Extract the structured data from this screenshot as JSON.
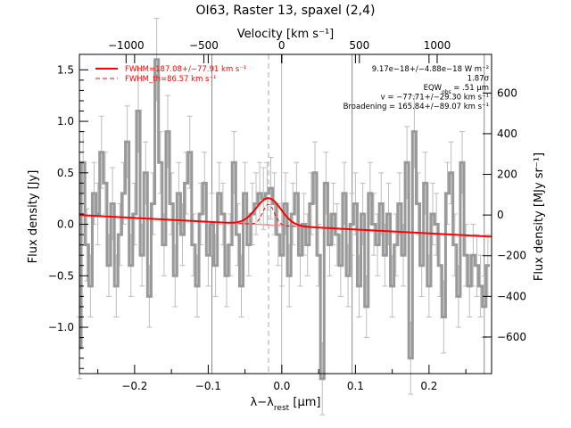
{
  "title": "OI63, Raster 13, spaxel (2,4)",
  "chart_data": {
    "type": "line",
    "title": "OI63, Raster 13, spaxel (2,4)",
    "xlabel": "λ−λ_rest [µm]",
    "ylabel": "Flux density [Jy]",
    "x2label": "Velocity [km s⁻¹]",
    "y2label": "Flux density [MJy sr⁻¹]",
    "xlim": [
      -0.275,
      0.285
    ],
    "ylim": [
      -1.45,
      1.65
    ],
    "x2lim": [
      -1300,
      1350
    ],
    "y2lim": [
      -780,
      790
    ],
    "xticks": [
      -0.2,
      -0.1,
      0.0,
      0.1,
      0.2
    ],
    "xtick_labels": [
      "−0.2",
      "−0.1",
      "0.0",
      "0.1",
      "0.2"
    ],
    "yticks": [
      -1.0,
      -0.5,
      0.0,
      0.5,
      1.0,
      1.5
    ],
    "ytick_labels": [
      "−1.0",
      "−0.5",
      "0.0",
      "0.5",
      "1.0",
      "1.5"
    ],
    "x2ticks": [
      -1000,
      -500,
      0,
      500,
      1000
    ],
    "x2tick_labels": [
      "−1000",
      "−500",
      "0",
      "500",
      "1000"
    ],
    "y2ticks": [
      -600,
      -400,
      -200,
      0,
      200,
      400,
      600
    ],
    "y2tick_labels": [
      "−600",
      "−400",
      "−200",
      "0",
      "200",
      "400",
      "600"
    ],
    "vertical_lines": [
      -0.095,
      0.0955,
      0.275
    ],
    "line_center": -0.018,
    "grid": false,
    "legend_position": "top-left",
    "legend": [
      {
        "label": "FWHM=187.08+/−77.91 km s⁻¹",
        "color": "#ff0000",
        "style": "solid"
      },
      {
        "label": "FWHM_th=86.57 km s⁻¹",
        "color": "#ff0000",
        "style": "dashed"
      }
    ],
    "annotations": [
      "9.17e−18+/−4.88e−18 W m⁻²",
      "1.87σ",
      "EQW_obs = .51 µm",
      "v = −77.71+/−29.30 km s⁻¹",
      "Broadening = 165.84+/−89.07 km s⁻¹"
    ],
    "series": [
      {
        "name": "observed spectrum",
        "color": "#999999",
        "style": "step",
        "x": [
          -0.275,
          -0.27,
          -0.265,
          -0.26,
          -0.255,
          -0.25,
          -0.245,
          -0.24,
          -0.235,
          -0.23,
          -0.225,
          -0.22,
          -0.215,
          -0.21,
          -0.205,
          -0.2,
          -0.195,
          -0.19,
          -0.185,
          -0.18,
          -0.175,
          -0.17,
          -0.165,
          -0.16,
          -0.155,
          -0.15,
          -0.145,
          -0.14,
          -0.135,
          -0.13,
          -0.125,
          -0.12,
          -0.115,
          -0.11,
          -0.105,
          -0.1,
          -0.095,
          -0.09,
          -0.085,
          -0.08,
          -0.075,
          -0.07,
          -0.065,
          -0.06,
          -0.055,
          -0.05,
          -0.045,
          -0.04,
          -0.035,
          -0.03,
          -0.025,
          -0.02,
          -0.015,
          -0.01,
          -0.005,
          0.0,
          0.005,
          0.01,
          0.015,
          0.02,
          0.025,
          0.03,
          0.035,
          0.04,
          0.045,
          0.05,
          0.055,
          0.06,
          0.065,
          0.07,
          0.075,
          0.08,
          0.085,
          0.09,
          0.095,
          0.1,
          0.105,
          0.11,
          0.115,
          0.12,
          0.125,
          0.13,
          0.135,
          0.14,
          0.145,
          0.15,
          0.155,
          0.16,
          0.165,
          0.17,
          0.175,
          0.18,
          0.185,
          0.19,
          0.195,
          0.2,
          0.205,
          0.21,
          0.215,
          0.22,
          0.225,
          0.23,
          0.235,
          0.24,
          0.245,
          0.25,
          0.255,
          0.26,
          0.265,
          0.27,
          0.275,
          0.28
        ],
        "y": [
          -1.2,
          0.6,
          -0.2,
          -0.6,
          0.3,
          0.1,
          0.7,
          0.4,
          -0.4,
          0.2,
          -0.6,
          -0.1,
          0.3,
          0.8,
          -0.4,
          0.1,
          1.1,
          -0.3,
          0.5,
          -0.7,
          0.2,
          1.6,
          0.6,
          -0.2,
          0.9,
          0.2,
          -0.5,
          0.3,
          -0.1,
          0.4,
          0.7,
          -0.2,
          -0.6,
          0.1,
          0.4,
          -0.3,
          0.0,
          -0.4,
          0.3,
          0.1,
          -0.5,
          -0.2,
          0.6,
          -0.1,
          -0.6,
          0.3,
          -0.2,
          0.1,
          0.2,
          0.3,
          0.25,
          0.3,
          0.35,
          0.2,
          -0.1,
          -0.3,
          0.2,
          -0.5,
          0.1,
          0.3,
          -0.3,
          0.0,
          -0.2,
          0.2,
          0.5,
          -0.3,
          -1.5,
          0.4,
          -0.2,
          0.1,
          -0.1,
          -0.4,
          0.3,
          -0.5,
          0.0,
          0.2,
          -0.6,
          0.1,
          -0.8,
          0.3,
          0.0,
          -0.2,
          0.2,
          -0.3,
          0.1,
          -0.6,
          -0.2,
          0.2,
          -0.3,
          0.6,
          -1.3,
          0.9,
          0.2,
          -0.4,
          0.4,
          -0.6,
          0.1,
          0.0,
          -0.4,
          -0.9,
          0.3,
          0.5,
          -0.2,
          -0.7,
          0.6,
          -0.3,
          -0.6,
          -0.3,
          -0.4,
          -0.6,
          -0.8,
          -0.4
        ],
        "err": [
          0.3,
          0.3,
          0.35,
          0.3,
          0.3,
          0.3,
          0.35,
          0.3,
          0.3,
          0.35,
          0.3,
          0.3,
          0.3,
          0.35,
          0.3,
          0.3,
          0.4,
          0.3,
          0.3,
          0.3,
          0.3,
          0.4,
          0.3,
          0.3,
          0.35,
          0.3,
          0.3,
          0.3,
          0.3,
          0.3,
          0.35,
          0.3,
          0.3,
          0.3,
          0.3,
          0.3,
          0.3,
          0.3,
          0.3,
          0.3,
          0.3,
          0.3,
          0.3,
          0.3,
          0.3,
          0.3,
          0.3,
          0.3,
          0.3,
          0.3,
          0.3,
          0.3,
          0.3,
          0.3,
          0.3,
          0.3,
          0.3,
          0.3,
          0.3,
          0.3,
          0.3,
          0.3,
          0.3,
          0.3,
          0.3,
          0.3,
          0.35,
          0.3,
          0.3,
          0.3,
          0.3,
          0.3,
          0.3,
          0.3,
          0.3,
          0.3,
          0.3,
          0.3,
          0.3,
          0.3,
          0.3,
          0.3,
          0.3,
          0.3,
          0.3,
          0.3,
          0.3,
          0.3,
          0.3,
          0.35,
          0.35,
          0.35,
          0.3,
          0.3,
          0.3,
          0.3,
          0.3,
          0.3,
          0.3,
          0.35,
          0.3,
          0.3,
          0.3,
          0.3,
          0.3,
          0.3,
          0.3,
          0.3,
          0.3,
          0.3,
          0.3,
          0.3
        ]
      },
      {
        "name": "total fit",
        "color": "#ff0000",
        "style": "solid",
        "baseline": [
          0.09,
          -0.12
        ],
        "peak_amplitude": 0.26,
        "peak_center": -0.018,
        "peak_sigma": 0.0169
      },
      {
        "name": "thermal profile",
        "color": "#ff0000",
        "style": "dashed",
        "peak_amplitude": 0.2,
        "peak_center": -0.018,
        "peak_sigma": 0.0078
      }
    ]
  }
}
